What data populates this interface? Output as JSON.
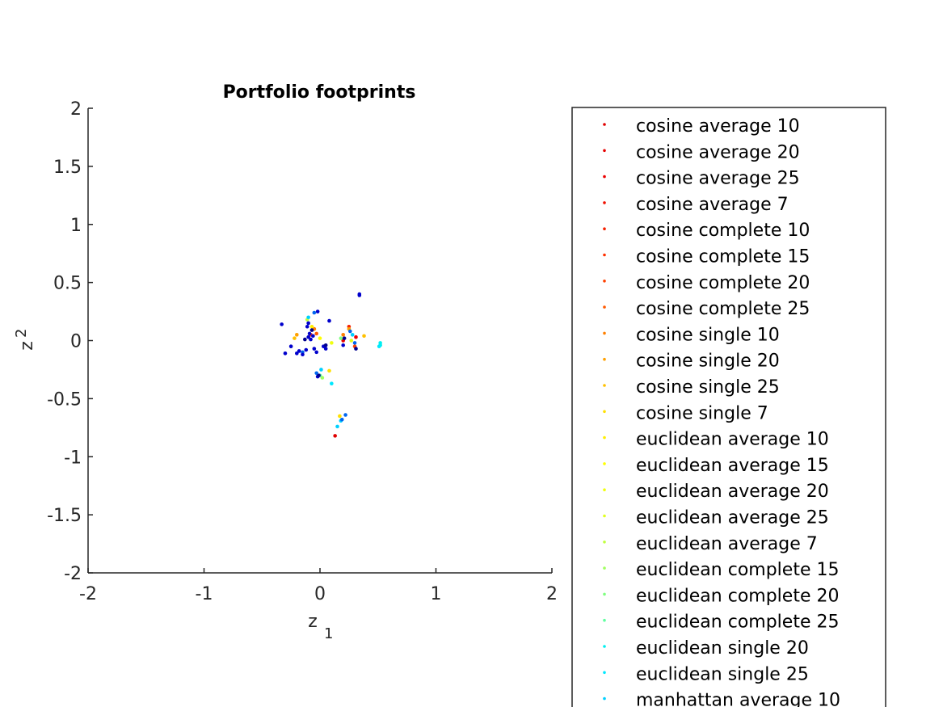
{
  "chart_data": {
    "type": "scatter",
    "title": "Portfolio footprints",
    "xlabel": {
      "base": "z",
      "sub": "1"
    },
    "ylabel": {
      "base": "z",
      "sub": "2"
    },
    "xlim": [
      -2,
      2
    ],
    "ylim": [
      -2,
      2
    ],
    "xticks": [
      "-2",
      "-1",
      "0",
      "1",
      "2"
    ],
    "yticks": [
      "-2",
      "-1.5",
      "-1",
      "-0.5",
      "0",
      "0.5",
      "1",
      "1.5",
      "2"
    ],
    "grid": false,
    "legend_position": "right",
    "series": [
      {
        "name": "cosine average 10",
        "color": "#e00000",
        "points": [
          [
            0.13,
            -0.82
          ]
        ]
      },
      {
        "name": "cosine average 20",
        "color": "#e60000",
        "points": [
          [
            0.2,
            0.0
          ]
        ]
      },
      {
        "name": "cosine average 25",
        "color": "#eb0000",
        "points": [
          [
            0.31,
            0.03
          ]
        ]
      },
      {
        "name": "cosine average 7",
        "color": "#f01000",
        "points": [
          [
            -0.05,
            0.1
          ]
        ]
      },
      {
        "name": "cosine complete 10",
        "color": "#f52000",
        "points": [
          [
            0.25,
            0.12
          ]
        ]
      },
      {
        "name": "cosine complete 15",
        "color": "#ff3000",
        "points": [
          [
            -0.08,
            0.05
          ]
        ]
      },
      {
        "name": "cosine complete 20",
        "color": "#ff4000",
        "points": [
          [
            0.3,
            -0.05
          ]
        ]
      },
      {
        "name": "cosine complete 25",
        "color": "#ff5a00",
        "points": [
          [
            -0.03,
            0.06
          ]
        ]
      },
      {
        "name": "cosine single 10",
        "color": "#ff8000",
        "points": [
          [
            0.2,
            0.05
          ],
          [
            -0.05,
            0.1
          ]
        ]
      },
      {
        "name": "cosine single 20",
        "color": "#ffa000",
        "points": [
          [
            -0.2,
            0.05
          ],
          [
            0.25,
            0.1
          ]
        ]
      },
      {
        "name": "cosine single 25",
        "color": "#ffc000",
        "points": [
          [
            -0.22,
            0.02
          ],
          [
            0.38,
            0.04
          ]
        ]
      },
      {
        "name": "cosine single 7",
        "color": "#ffe000",
        "points": [
          [
            0.08,
            -0.26
          ],
          [
            0.17,
            -0.65
          ]
        ]
      },
      {
        "name": "euclidean average 10",
        "color": "#ffee00",
        "points": [
          [
            -0.07,
            0.12
          ]
        ]
      },
      {
        "name": "euclidean average 15",
        "color": "#ffff00",
        "points": [
          [
            0.0,
            0.02
          ]
        ]
      },
      {
        "name": "euclidean average 20",
        "color": "#f0ff10",
        "points": [
          [
            0.1,
            -0.02
          ]
        ]
      },
      {
        "name": "euclidean average 25",
        "color": "#e0ff20",
        "points": [
          [
            0.27,
            0.0
          ]
        ]
      },
      {
        "name": "euclidean average 7",
        "color": "#c0ff40",
        "points": [
          [
            -0.11,
            0.18
          ]
        ]
      },
      {
        "name": "euclidean complete 15",
        "color": "#a0ff60",
        "points": [
          [
            0.02,
            -0.32
          ]
        ]
      },
      {
        "name": "euclidean complete 20",
        "color": "#80ff80",
        "points": [
          [
            0.18,
            0.02
          ]
        ]
      },
      {
        "name": "euclidean complete 25",
        "color": "#60ffa0",
        "points": [
          [
            0.0,
            -0.3
          ]
        ]
      },
      {
        "name": "euclidean single 20",
        "color": "#00f0f0",
        "points": [
          [
            0.52,
            -0.02
          ],
          [
            0.52,
            -0.04
          ]
        ]
      },
      {
        "name": "euclidean single 25",
        "color": "#00e8ff",
        "points": [
          [
            0.51,
            -0.05
          ],
          [
            0.1,
            -0.37
          ]
        ]
      },
      {
        "name": "manhattan average 10",
        "color": "#00d0ff",
        "points": [
          [
            -0.1,
            0.2
          ],
          [
            0.28,
            0.05
          ],
          [
            0.01,
            -0.25
          ],
          [
            0.15,
            -0.74
          ],
          [
            0.18,
            -0.69
          ]
        ]
      },
      {
        "name": "",
        "color": "#0066ee",
        "points": [
          [
            0.22,
            -0.64
          ],
          [
            0.19,
            -0.68
          ],
          [
            -0.03,
            -0.28
          ],
          [
            -0.15,
            -0.1
          ],
          [
            0.26,
            0.08
          ],
          [
            -0.05,
            0.24
          ],
          [
            0.3,
            -0.02
          ]
        ]
      },
      {
        "name": "",
        "color": "#0000cc",
        "points": [
          [
            -0.33,
            0.14
          ],
          [
            -0.3,
            -0.11
          ],
          [
            -0.25,
            -0.05
          ],
          [
            -0.2,
            -0.11
          ],
          [
            -0.18,
            -0.09
          ],
          [
            -0.15,
            -0.12
          ],
          [
            -0.12,
            -0.08
          ],
          [
            -0.11,
            0.12
          ],
          [
            -0.1,
            0.03
          ],
          [
            -0.09,
            0.06
          ],
          [
            -0.08,
            0.01
          ],
          [
            -0.06,
            0.04
          ],
          [
            -0.05,
            -0.07
          ],
          [
            -0.03,
            -0.1
          ],
          [
            -0.02,
            0.25
          ],
          [
            0.03,
            -0.05
          ],
          [
            0.05,
            -0.07
          ],
          [
            0.08,
            0.17
          ],
          [
            0.34,
            0.39
          ],
          [
            0.34,
            0.4
          ],
          [
            0.2,
            -0.04
          ],
          [
            -0.1,
            0.15
          ],
          [
            -0.02,
            -0.31
          ]
        ]
      },
      {
        "name": "",
        "color": "#00008f",
        "points": [
          [
            -0.13,
            0.01
          ],
          [
            -0.07,
            0.09
          ],
          [
            0.05,
            -0.04
          ],
          [
            0.31,
            -0.07
          ],
          [
            -0.01,
            -0.3
          ],
          [
            0.21,
            0.02
          ]
        ]
      }
    ]
  }
}
